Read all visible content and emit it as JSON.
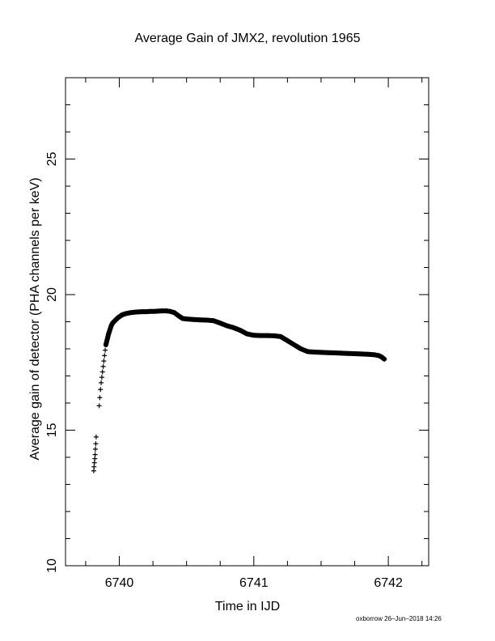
{
  "chart_data": {
    "type": "scatter",
    "title": "Average Gain of JMX2, revolution 1965",
    "xlabel": "Time in IJD",
    "ylabel": "Average gain of detector (PHA channels per keV)",
    "xlim": [
      6739.6,
      6742.3
    ],
    "ylim": [
      10,
      28
    ],
    "xticks": [
      6740,
      6741,
      6742
    ],
    "yticks": [
      10,
      15,
      20,
      25
    ],
    "grid": false,
    "marker": "plus",
    "series": [
      {
        "x": [
          6739.81,
          6739.812,
          6739.815,
          6739.818,
          6739.82,
          6739.822,
          6739.825,
          6739.828,
          6739.85,
          6739.855,
          6739.86,
          6739.865,
          6739.87,
          6739.875,
          6739.88,
          6739.885,
          6739.89,
          6739.895,
          6739.9,
          6739.91,
          6739.92,
          6739.93,
          6739.94,
          6739.95,
          6739.97,
          6739.99,
          6740.02,
          6740.05,
          6740.08,
          6740.11,
          6740.14,
          6740.17,
          6740.2,
          6740.23,
          6740.26,
          6740.29,
          6740.32,
          6740.35,
          6740.38,
          6740.41,
          6740.44,
          6740.47,
          6740.5,
          6740.55,
          6740.6,
          6740.65,
          6740.7,
          6740.75,
          6740.8,
          6740.85,
          6740.9,
          6740.95,
          6741.0,
          6741.05,
          6741.1,
          6741.15,
          6741.2,
          6741.25,
          6741.3,
          6741.35,
          6741.4,
          6741.45,
          6741.5,
          6741.55,
          6741.6,
          6741.65,
          6741.7,
          6741.75,
          6741.8,
          6741.85,
          6741.9,
          6741.93,
          6741.95,
          6741.97
        ],
        "y": [
          13.5,
          13.65,
          13.8,
          13.95,
          14.1,
          14.3,
          14.5,
          14.75,
          15.9,
          16.2,
          16.5,
          16.75,
          16.95,
          17.15,
          17.35,
          17.55,
          17.75,
          17.95,
          18.15,
          18.35,
          18.55,
          18.7,
          18.85,
          18.95,
          19.05,
          19.15,
          19.25,
          19.3,
          19.33,
          19.35,
          19.36,
          19.37,
          19.37,
          19.38,
          19.38,
          19.39,
          19.4,
          19.4,
          19.38,
          19.33,
          19.22,
          19.12,
          19.1,
          19.08,
          19.07,
          19.06,
          19.04,
          18.95,
          18.85,
          18.78,
          18.68,
          18.55,
          18.5,
          18.49,
          18.49,
          18.48,
          18.45,
          18.3,
          18.15,
          18.0,
          17.9,
          17.88,
          17.87,
          17.86,
          17.85,
          17.84,
          17.83,
          17.82,
          17.81,
          17.8,
          17.78,
          17.75,
          17.7,
          17.62
        ]
      }
    ]
  },
  "footer": "oxborrow 26–Jun–2018 14:26"
}
